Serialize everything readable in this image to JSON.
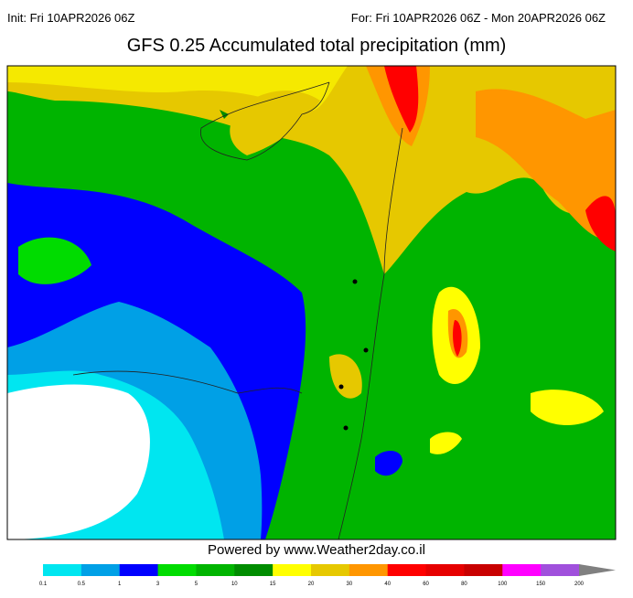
{
  "header": {
    "init": "Init: Fri 10APR2026 06Z",
    "valid": "For: Fri 10APR2026 06Z - Mon 20APR2026 06Z",
    "title": "GFS 0.25 Accumulated total precipitation (mm)"
  },
  "footer": "Powered by www.Weather2day.co.il",
  "colorbar": {
    "labels": [
      "0.1",
      "0.5",
      "1",
      "3",
      "5",
      "10",
      "15",
      "20",
      "30",
      "40",
      "60",
      "80",
      "100",
      "150",
      "200"
    ],
    "colors": [
      "#00e6f0",
      "#00a0e6",
      "#0000ff",
      "#00dc00",
      "#00b400",
      "#008c00",
      "#ffff00",
      "#e6c800",
      "#ff9600",
      "#ff0000",
      "#e60000",
      "#c80000",
      "#ff00ff",
      "#a050dc",
      "#808080"
    ]
  }
}
